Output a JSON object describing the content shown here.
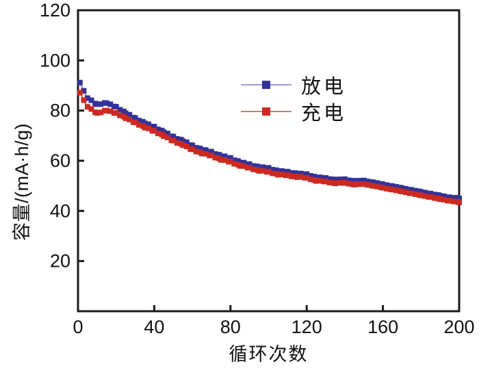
{
  "figure": {
    "background": "#ffffff",
    "axis_color": "#1a1a1a",
    "text_color": "#111111"
  },
  "chart_data": {
    "type": "line",
    "title": "",
    "xlabel": "循环次数",
    "ylabel": "容量/(mA·h/g)",
    "xlim": [
      0,
      200
    ],
    "ylim": [
      0,
      120
    ],
    "x_ticks": [
      0,
      40,
      80,
      120,
      160,
      200
    ],
    "y_ticks": [
      20,
      40,
      60,
      80,
      100,
      120
    ],
    "grid": false,
    "legend_position": "upper-center-inside",
    "x": [
      1,
      5,
      10,
      15,
      20,
      25,
      30,
      35,
      40,
      45,
      50,
      55,
      60,
      65,
      70,
      75,
      80,
      85,
      90,
      95,
      100,
      105,
      110,
      115,
      120,
      125,
      130,
      135,
      140,
      145,
      150,
      155,
      160,
      165,
      170,
      175,
      180,
      185,
      190,
      195,
      200
    ],
    "series": [
      {
        "name": "放电",
        "marker_color": "#32329B",
        "line_color": "#9C9CC6",
        "values": [
          91,
          85,
          82.5,
          83,
          81.5,
          79,
          77,
          75,
          73.5,
          71.5,
          69.5,
          68,
          66,
          64.5,
          63.5,
          62,
          61,
          59.5,
          58.5,
          57.5,
          57,
          56,
          55.5,
          55,
          54.5,
          53.5,
          53,
          52.5,
          52.5,
          52,
          52,
          51.5,
          50.5,
          50,
          49,
          48.5,
          47.5,
          47,
          46,
          45.5,
          45
        ]
      },
      {
        "name": "充电",
        "marker_color": "#CC2A20",
        "line_color": "#D4786E",
        "values": [
          87,
          81.5,
          79,
          80,
          79,
          77,
          75.2,
          73.3,
          71.8,
          69.9,
          67.9,
          66.3,
          64.4,
          63,
          62,
          60.5,
          59.5,
          58.1,
          57.1,
          56.1,
          55.5,
          54.6,
          54.1,
          53.6,
          53.1,
          52.1,
          51.6,
          51.1,
          51.1,
          50.6,
          50.6,
          50.1,
          49.1,
          48.6,
          47.6,
          47.1,
          46.1,
          45.6,
          44.6,
          44.1,
          43.4
        ]
      }
    ]
  }
}
